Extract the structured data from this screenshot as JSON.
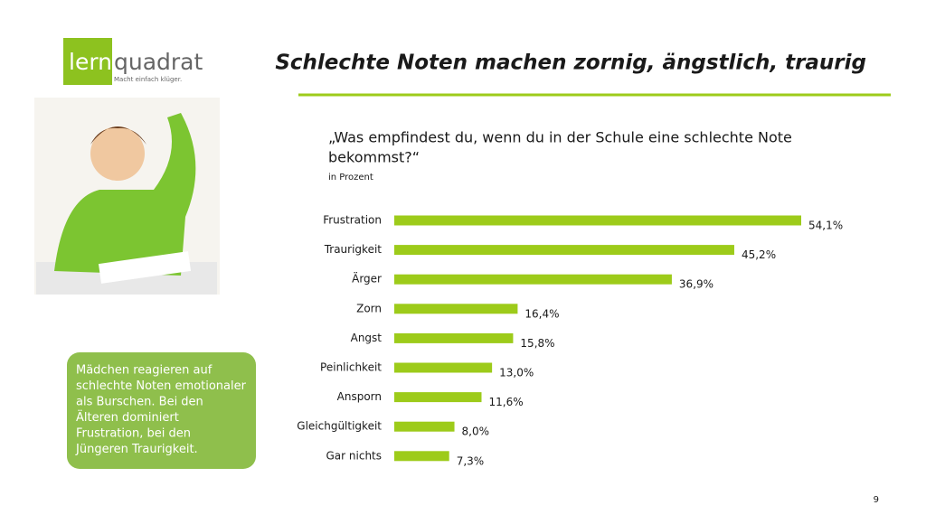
{
  "header": {
    "logo_left": "lern",
    "logo_right": "quadrat",
    "tagline": "Macht einfach klüger.",
    "title": "Schlechte Noten machen zornig, ängstlich, traurig"
  },
  "note": {
    "lines": [
      "Mädchen reagieren auf",
      "schlechte Noten emotionaler",
      "als Burschen. Bei den",
      "Älteren dominiert",
      "Frustration, bei den",
      "Jüngeren Traurigkeit."
    ]
  },
  "page_number": 9,
  "chart_data": {
    "type": "bar",
    "orientation": "horizontal",
    "title": [
      "„Was empfindest du, wenn du in der Schule eine schlechte Note",
      "bekommst?“"
    ],
    "subtitle": "in Prozent",
    "categories": [
      "Frustration",
      "Traurigkeit",
      "Ärger",
      "Zorn",
      "Angst",
      "Peinlichkeit",
      "Ansporn",
      "Gleichgültigkeit",
      "Gar nichts"
    ],
    "values": [
      54.1,
      45.2,
      36.9,
      16.4,
      15.8,
      13.0,
      11.6,
      8.0,
      7.3
    ],
    "value_labels": [
      "54,1%",
      "45,2%",
      "36,9%",
      "16,4%",
      "15,8%",
      "13,0%",
      "11,6%",
      "8,0%",
      "7,3%"
    ],
    "color": "#9dcb1a"
  }
}
